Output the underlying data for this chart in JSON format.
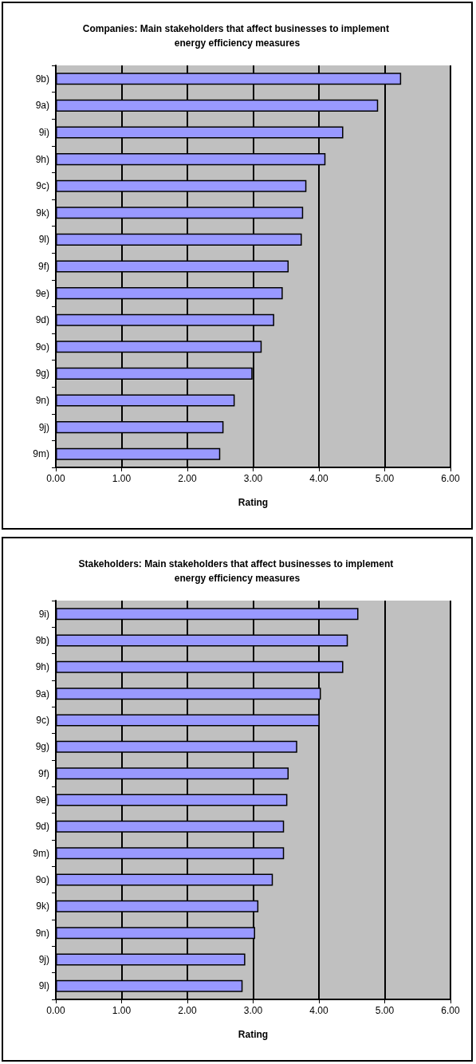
{
  "chart_data": [
    {
      "type": "bar",
      "orientation": "horizontal",
      "title": "Companies: Main stakeholders that affect businesses to implement energy efficiency measures",
      "xlabel": "Rating",
      "categories": [
        "9b)",
        "9a)",
        "9i)",
        "9h)",
        "9c)",
        "9k)",
        "9l)",
        "9f)",
        "9e)",
        "9d)",
        "9o)",
        "9g)",
        "9n)",
        "9j)",
        "9m)"
      ],
      "series": [
        {
          "color": "#9999ff",
          "values": [
            5.25,
            4.9,
            4.37,
            4.1,
            3.81,
            3.76,
            3.74,
            3.54,
            3.45,
            3.32,
            3.13,
            2.99,
            2.72,
            2.55,
            2.5
          ]
        }
      ],
      "xlim": [
        0,
        6
      ],
      "xticks": [
        {
          "value": 0,
          "label": "0.00"
        },
        {
          "value": 1,
          "label": "1.00"
        },
        {
          "value": 2,
          "label": "2.00"
        },
        {
          "value": 3,
          "label": "3.00"
        },
        {
          "value": 4,
          "label": "4.00"
        },
        {
          "value": 5,
          "label": "5.00"
        },
        {
          "value": 6,
          "label": "6.00"
        }
      ],
      "grid": "x"
    },
    {
      "type": "bar",
      "orientation": "horizontal",
      "title": "Stakeholders: Main stakeholders that affect businesses to implement energy efficiency measures",
      "xlabel": "Rating",
      "categories": [
        "9i)",
        "9b)",
        "9h)",
        "9a)",
        "9c)",
        "9g)",
        "9f)",
        "9e)",
        "9d)",
        "9m)",
        "9o)",
        "9k)",
        "9n)",
        "9j)",
        "9l)"
      ],
      "series": [
        {
          "color": "#9999ff",
          "values": [
            4.6,
            4.44,
            4.37,
            4.03,
            4.01,
            3.67,
            3.54,
            3.52,
            3.47,
            3.47,
            3.3,
            3.08,
            3.03,
            2.88,
            2.84
          ]
        }
      ],
      "xlim": [
        0,
        6
      ],
      "xticks": [
        {
          "value": 0,
          "label": "0.00"
        },
        {
          "value": 1,
          "label": "1.00"
        },
        {
          "value": 2,
          "label": "2.00"
        },
        {
          "value": 3,
          "label": "3.00"
        },
        {
          "value": 4,
          "label": "4.00"
        },
        {
          "value": 5,
          "label": "5.00"
        },
        {
          "value": 6,
          "label": "6.00"
        }
      ],
      "grid": "x"
    }
  ]
}
